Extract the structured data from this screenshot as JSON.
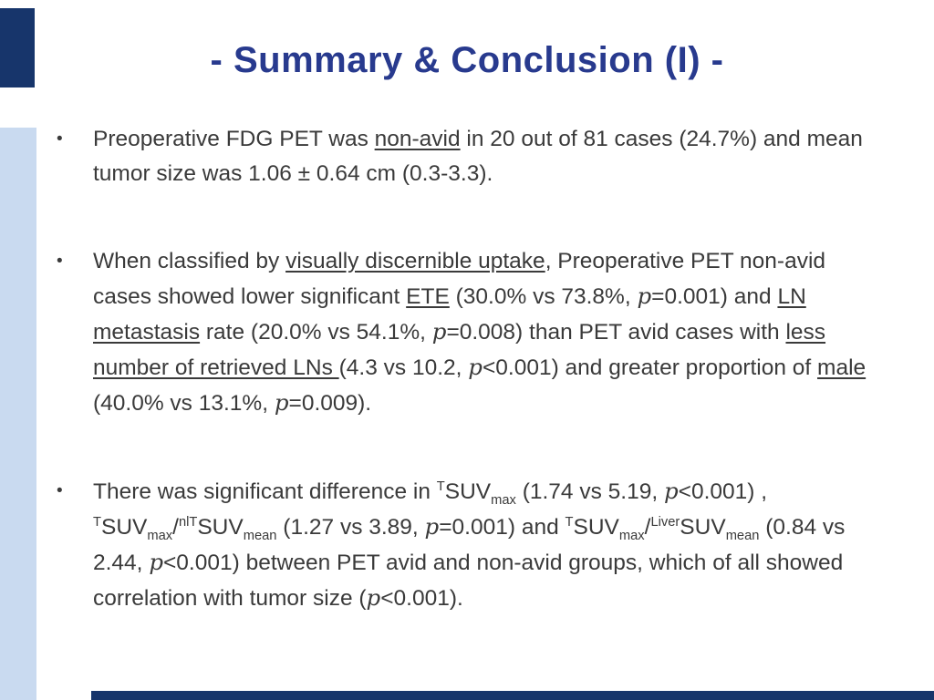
{
  "slide": {
    "title": "- Summary & Conclusion (I) -",
    "bullet_char": "•",
    "colors": {
      "title": "#283A8E",
      "accent_dark": "#17356B",
      "accent_light": "#C9DAF0",
      "body_text": "#3A3A3A"
    },
    "bullets": [
      {
        "segments": [
          {
            "text": "Preoperative FDG PET was "
          },
          {
            "text": "non-avid",
            "style": [
              "u"
            ]
          },
          {
            "text": " in 20 out of 81 cases (24.7%) and mean tumor size was 1.06 ± 0.64 cm (0.3-3.3)."
          }
        ]
      },
      {
        "segments": [
          {
            "text": "When classified by "
          },
          {
            "text": "visually discernible uptake",
            "style": [
              "u"
            ]
          },
          {
            "text": ", Preoperative PET non-avid cases showed lower significant "
          },
          {
            "text": "ETE",
            "style": [
              "u"
            ]
          },
          {
            "text": " (30.0% vs 73.8%, "
          },
          {
            "text": "p",
            "style": [
              "i"
            ]
          },
          {
            "text": "=0.001) and "
          },
          {
            "text": "LN metastasis",
            "style": [
              "u"
            ]
          },
          {
            "text": " rate (20.0% vs 54.1%, "
          },
          {
            "text": "p",
            "style": [
              "i"
            ]
          },
          {
            "text": "=0.008) than PET avid cases with "
          },
          {
            "text": "less number of retrieved LNs ",
            "style": [
              "u"
            ]
          },
          {
            "text": "(4.3 vs 10.2, "
          },
          {
            "text": "p",
            "style": [
              "i"
            ]
          },
          {
            "text": "<0.001)  and greater proportion of "
          },
          {
            "text": "male",
            "style": [
              "u"
            ]
          },
          {
            "text": " (40.0% vs 13.1%, "
          },
          {
            "text": "p",
            "style": [
              "i"
            ]
          },
          {
            "text": "=0.009)."
          }
        ]
      },
      {
        "segments": [
          {
            "text": "There was significant difference in "
          },
          {
            "text": "T",
            "style": [
              "sup"
            ]
          },
          {
            "text": "SUV"
          },
          {
            "text": "max",
            "style": [
              "sub"
            ]
          },
          {
            "text": " (1.74 vs 5.19, "
          },
          {
            "text": "p",
            "style": [
              "i"
            ]
          },
          {
            "text": "<0.001) , "
          },
          {
            "text": "T",
            "style": [
              "sup"
            ]
          },
          {
            "text": "SUV"
          },
          {
            "text": "max",
            "style": [
              "sub"
            ]
          },
          {
            "text": "/"
          },
          {
            "text": "nlT",
            "style": [
              "sup"
            ]
          },
          {
            "text": "SUV"
          },
          {
            "text": "mean",
            "style": [
              "sub"
            ]
          },
          {
            "text": " (1.27 vs 3.89, "
          },
          {
            "text": "p",
            "style": [
              "i"
            ]
          },
          {
            "text": "=0.001) and "
          },
          {
            "text": "T",
            "style": [
              "sup"
            ]
          },
          {
            "text": "SUV"
          },
          {
            "text": "max",
            "style": [
              "sub"
            ]
          },
          {
            "text": "/"
          },
          {
            "text": "Liver",
            "style": [
              "sup"
            ]
          },
          {
            "text": "SUV"
          },
          {
            "text": "mean",
            "style": [
              "sub"
            ]
          },
          {
            "text": " (0.84 vs 2.44, "
          },
          {
            "text": "p",
            "style": [
              "i"
            ]
          },
          {
            "text": "<0.001) between PET avid and non-avid groups, which of all showed correlation with tumor size ("
          },
          {
            "text": "p",
            "style": [
              "i"
            ]
          },
          {
            "text": "<0.001)."
          }
        ]
      }
    ]
  }
}
